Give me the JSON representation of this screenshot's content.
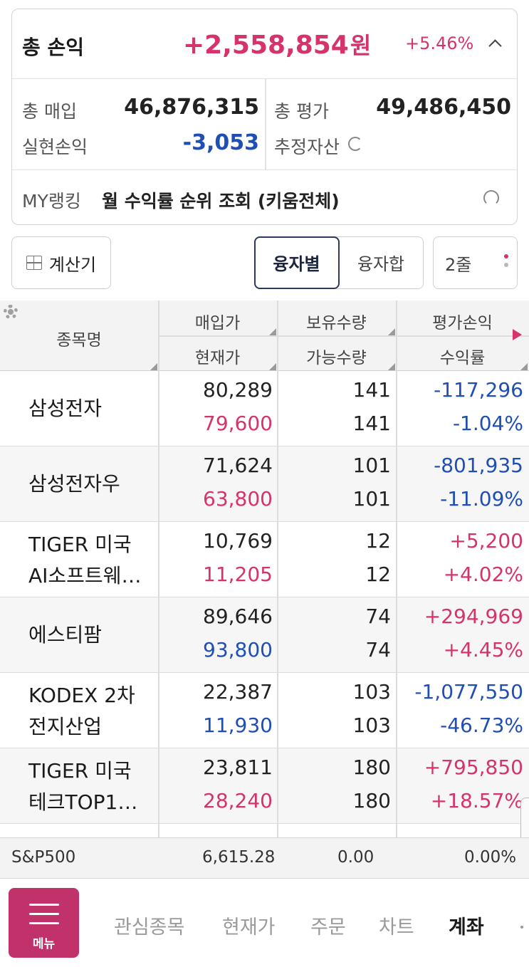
{
  "summary": {
    "title": "총 손익",
    "total_profit": "+2,558,854",
    "unit": "원",
    "rate": "+5.46%",
    "total_buy_label": "총 매입",
    "total_buy": "46,876,315",
    "total_eval_label": "총 평가",
    "total_eval": "49,486,450",
    "realized_label": "실현손익",
    "realized": "-3,053",
    "est_assets_label": "추정자산"
  },
  "myrank": {
    "label": "MY랭킹",
    "text": "월 수익률 순위 조회 (키움전체)"
  },
  "controls": {
    "calculator": "계산기",
    "seg_a": "융자별",
    "seg_b": "융자합",
    "rows": "2줄"
  },
  "table": {
    "headers": {
      "name": "종목명",
      "buy_price": "매입가",
      "current_price": "현재가",
      "qty": "보유수량",
      "avail_qty": "가능수량",
      "pnl": "평가손익",
      "return": "수익률"
    },
    "rows": [
      {
        "name": "삼성전자",
        "buy_price": "80,289",
        "current_price": "79,600",
        "qty": "141",
        "avail_qty": "141",
        "pnl": "-117,296",
        "return": "-1.04%"
      },
      {
        "name": "삼성전자우",
        "buy_price": "71,624",
        "current_price": "63,800",
        "qty": "101",
        "avail_qty": "101",
        "pnl": "-801,935",
        "return": "-11.09%"
      },
      {
        "name_line1": "TIGER 미국",
        "name_line2": "AI소프트웨…",
        "buy_price": "10,769",
        "current_price": "11,205",
        "qty": "12",
        "avail_qty": "12",
        "pnl": "+5,200",
        "return": "+4.02%"
      },
      {
        "name": "에스티팜",
        "buy_price": "89,646",
        "current_price": "93,800",
        "qty": "74",
        "avail_qty": "74",
        "pnl": "+294,969",
        "return": "+4.45%"
      },
      {
        "name_line1": "KODEX 2차",
        "name_line2": "전지산업",
        "buy_price": "22,387",
        "current_price": "11,930",
        "qty": "103",
        "avail_qty": "103",
        "pnl": "-1,077,550",
        "return": "-46.73%"
      },
      {
        "name_line1": "TIGER 미국",
        "name_line2": "테크TOP1…",
        "buy_price": "23,811",
        "current_price": "28,240",
        "qty": "180",
        "avail_qty": "180",
        "pnl": "+795,850",
        "return": "+18.57%"
      }
    ]
  },
  "index_bar": {
    "name": "S&P500",
    "value": "6,615.28",
    "change": "0.00",
    "rate": "0.00%"
  },
  "nav": {
    "menu": "메뉴",
    "items": [
      "관심종목",
      "현재가",
      "주문",
      "차트",
      "계좌"
    ]
  },
  "colors": {
    "positive": "#d6336c",
    "negative": "#1f4fb5",
    "menu": "#c2326a"
  }
}
